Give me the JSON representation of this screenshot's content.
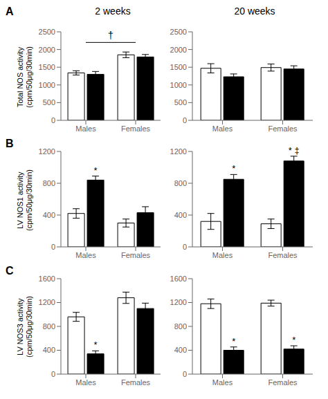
{
  "chart_data": [
    {
      "type": "bar",
      "title": "2 weeks",
      "panel": "A",
      "ylabel": "Total NOS activity\n(cpm/50μg/30min)",
      "categories": [
        "Males",
        "Females"
      ],
      "series": [
        {
          "color": "white",
          "values": [
            1340,
            1850
          ],
          "errors": [
            60,
            80
          ]
        },
        {
          "color": "black",
          "values": [
            1300,
            1790
          ],
          "errors": [
            80,
            70
          ]
        }
      ],
      "ylim": [
        0,
        2500
      ],
      "yticks": [
        0,
        500,
        1000,
        1500,
        2000,
        2500
      ],
      "annotations": [
        {
          "text": "†",
          "bracket": [
            "Males",
            "Females"
          ]
        }
      ]
    },
    {
      "type": "bar",
      "title": "20 weeks",
      "categories": [
        "Males",
        "Females"
      ],
      "series": [
        {
          "color": "white",
          "values": [
            1470,
            1490
          ],
          "errors": [
            130,
            100
          ]
        },
        {
          "color": "black",
          "values": [
            1230,
            1450
          ],
          "errors": [
            80,
            90
          ]
        }
      ],
      "ylim": [
        0,
        2500
      ],
      "yticks": [
        0,
        500,
        1000,
        1500,
        2000,
        2500
      ]
    },
    {
      "type": "bar",
      "panel": "B",
      "ylabel": "LV NOS1 activity\n(cpm/50μg/30min)",
      "categories": [
        "Males",
        "Females"
      ],
      "series": [
        {
          "color": "white",
          "values": [
            420,
            300
          ],
          "errors": [
            60,
            50
          ]
        },
        {
          "color": "black",
          "values": [
            840,
            430
          ],
          "errors": [
            50,
            75
          ]
        }
      ],
      "ylim": [
        0,
        1200
      ],
      "yticks": [
        0,
        400,
        800,
        1200
      ],
      "annotations": [
        {
          "text": "*",
          "category": "Males",
          "series": 1
        }
      ]
    },
    {
      "type": "bar",
      "categories": [
        "Males",
        "Females"
      ],
      "series": [
        {
          "color": "white",
          "values": [
            320,
            290
          ],
          "errors": [
            100,
            60
          ]
        },
        {
          "color": "black",
          "values": [
            850,
            1080
          ],
          "errors": [
            60,
            60
          ]
        }
      ],
      "ylim": [
        0,
        1200
      ],
      "yticks": [
        0,
        400,
        800,
        1200
      ],
      "annotations": [
        {
          "text": "*",
          "category": "Males",
          "series": 1
        },
        {
          "text": "* ‡",
          "category": "Females",
          "series": 1
        }
      ]
    },
    {
      "type": "bar",
      "panel": "C",
      "ylabel": "LV NOS3 activity\n(cpm/50μg/30min)",
      "categories": [
        "Males",
        "Females"
      ],
      "series": [
        {
          "color": "white",
          "values": [
            960,
            1280
          ],
          "errors": [
            75,
            95
          ]
        },
        {
          "color": "black",
          "values": [
            340,
            1100
          ],
          "errors": [
            50,
            90
          ]
        }
      ],
      "ylim": [
        0,
        1600
      ],
      "yticks": [
        0,
        400,
        800,
        1200,
        1600
      ],
      "annotations": [
        {
          "text": "*",
          "category": "Males",
          "series": 1
        }
      ]
    },
    {
      "type": "bar",
      "categories": [
        "Males",
        "Females"
      ],
      "series": [
        {
          "color": "white",
          "values": [
            1180,
            1190
          ],
          "errors": [
            80,
            50
          ]
        },
        {
          "color": "black",
          "values": [
            400,
            420
          ],
          "errors": [
            55,
            55
          ]
        }
      ],
      "ylim": [
        0,
        1600
      ],
      "yticks": [
        0,
        400,
        800,
        1200,
        1600
      ],
      "annotations": [
        {
          "text": "*",
          "category": "Males",
          "series": 1
        },
        {
          "text": "*",
          "category": "Females",
          "series": 1
        }
      ]
    }
  ]
}
